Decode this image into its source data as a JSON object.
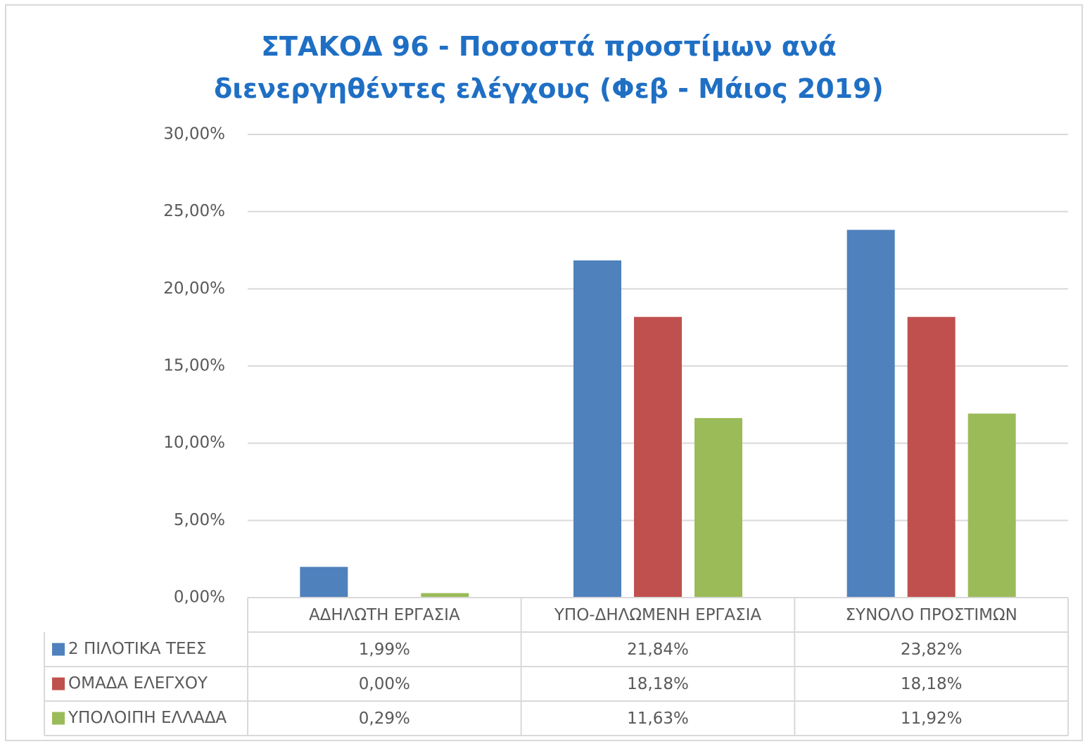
{
  "chart_data": {
    "type": "bar",
    "title": "ΣΤΑΚΟΔ 96 - Ποσοστά προστίμων ανά διενεργηθέντες ελέγχους (Φεβ - Μάιος 2019)",
    "categories": [
      "ΑΔΗΛΩΤΗ ΕΡΓΑΣΙΑ",
      "ΥΠΟ-ΔΗΛΩΜΕΝΗ ΕΡΓΑΣΙΑ",
      "ΣΥΝΟΛΟ ΠΡΟΣΤΙΜΩΝ"
    ],
    "series": [
      {
        "name": "2 ΠΙΛΟΤΙΚΑ ΤΕΕΣ",
        "color": "#4f81bd",
        "values": [
          1.99,
          21.84,
          23.82
        ],
        "value_labels": [
          "1,99%",
          "21,84%",
          "23,82%"
        ]
      },
      {
        "name": "ΟΜΑΔΑ ΕΛΕΓΧΟΥ",
        "color": "#c0504d",
        "values": [
          0,
          18.18,
          18.18
        ],
        "value_labels": [
          "0,00%",
          "18,18%",
          "18,18%"
        ]
      },
      {
        "name": "ΥΠΟΛΟΙΠΗ ΕΛΛΑΔΑ",
        "color": "#9bbb59",
        "values": [
          0.29,
          11.63,
          11.92
        ],
        "value_labels": [
          "0,29%",
          "11,63%",
          "11,92%"
        ]
      }
    ],
    "ylim": [
      0,
      30
    ],
    "yticks": [
      {
        "value": 0,
        "label": "0,00%"
      },
      {
        "value": 5,
        "label": "5,00%"
      },
      {
        "value": 10,
        "label": "10,00%"
      },
      {
        "value": 15,
        "label": "15,00%"
      },
      {
        "value": 20,
        "label": "20,00%"
      },
      {
        "value": 25,
        "label": "25,00%"
      },
      {
        "value": 30,
        "label": "30,00%"
      }
    ],
    "grid": true,
    "legend": "table"
  }
}
